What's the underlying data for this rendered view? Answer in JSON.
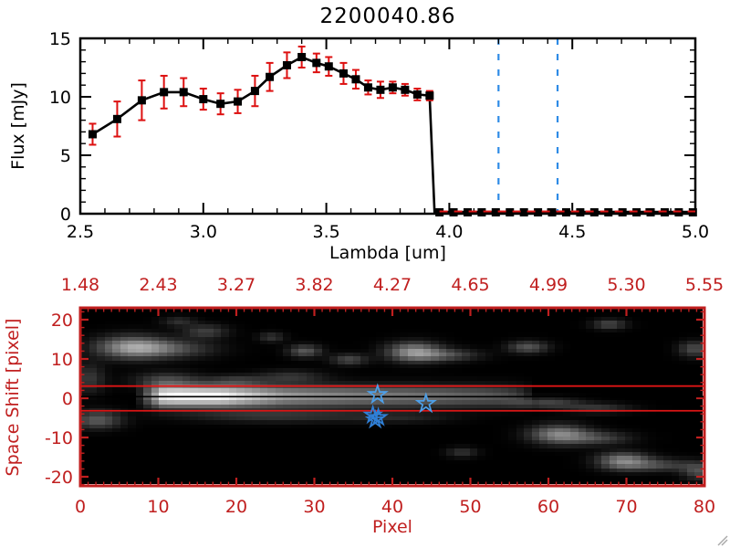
{
  "title": "2200040.86",
  "colors": {
    "background": "#ffffff",
    "spectrum_axis": "#000000",
    "spectrum_line": "#000000",
    "error_bar_red": "#dd1010",
    "zero_dashed_red": "#dd1515",
    "band_line_blue": "#2e8be6",
    "image_axis_red": "#c01f1f",
    "aperture_line_red": "#dd1515",
    "trace_line_black": "#000000",
    "star_blue": "#4da0ea",
    "star_cluster_blue": "#2f7fd6",
    "resize_grip_gray": "#aaaaaa"
  },
  "chart_data": [
    {
      "id": "spectrum",
      "type": "line",
      "title": "2200040.86",
      "xlabel": "Lambda [um]",
      "ylabel": "Flux [mJy]",
      "xlim": [
        2.5,
        5.0
      ],
      "ylim": [
        0,
        15
      ],
      "x_ticks": [
        "2.5",
        "3.0",
        "3.5",
        "4.0",
        "4.5",
        "5.0"
      ],
      "y_ticks": [
        "0",
        "5",
        "10",
        "15"
      ],
      "x_minor_step": 0.1,
      "y_minor_step": 1,
      "marker": "filled-square",
      "legend": "none",
      "grid": false,
      "points_columns": [
        "lambda_um",
        "flux_mJy",
        "flux_err_mJy"
      ],
      "points": [
        [
          2.55,
          6.8,
          0.9
        ],
        [
          2.65,
          8.1,
          1.5
        ],
        [
          2.75,
          9.7,
          1.7
        ],
        [
          2.84,
          10.4,
          1.4
        ],
        [
          2.92,
          10.4,
          1.2
        ],
        [
          3.0,
          9.8,
          0.9
        ],
        [
          3.07,
          9.4,
          0.9
        ],
        [
          3.14,
          9.6,
          1.0
        ],
        [
          3.21,
          10.5,
          1.3
        ],
        [
          3.27,
          11.7,
          1.2
        ],
        [
          3.34,
          12.7,
          1.1
        ],
        [
          3.4,
          13.4,
          0.9
        ],
        [
          3.46,
          12.9,
          0.8
        ],
        [
          3.51,
          12.6,
          0.8
        ],
        [
          3.57,
          12.0,
          0.9
        ],
        [
          3.62,
          11.5,
          0.8
        ],
        [
          3.67,
          10.8,
          0.6
        ],
        [
          3.72,
          10.6,
          0.7
        ],
        [
          3.77,
          10.8,
          0.5
        ],
        [
          3.82,
          10.6,
          0.5
        ],
        [
          3.87,
          10.2,
          0.5
        ],
        [
          3.92,
          10.1,
          0.4
        ]
      ],
      "drop_to_zero_at_x": 3.94,
      "zero_tail": {
        "from": 3.96,
        "to": 4.99,
        "count": 19,
        "flux": 0
      },
      "vlines_dashed_blue": [
        4.2,
        4.44
      ],
      "hline_dashed_red": {
        "y": 0,
        "from_x": 3.96,
        "to_x": 5.0
      }
    },
    {
      "id": "spatial_image",
      "type": "heatmap",
      "xlabel": "Pixel",
      "ylabel": "Space Shift [pixel]",
      "top_axis_tick_labels": [
        "1.48",
        "2.43",
        "3.27",
        "3.82",
        "4.27",
        "4.65",
        "4.99",
        "5.30",
        "5.55"
      ],
      "x_ticks": [
        "0",
        "10",
        "20",
        "30",
        "40",
        "50",
        "60",
        "70",
        "80"
      ],
      "y_ticks": [
        "20",
        "10",
        "0",
        "-10",
        "-20"
      ],
      "xlim": [
        0,
        80
      ],
      "ylim": [
        -22,
        23
      ],
      "colormap": "grayscale",
      "aperture_lines_y": [
        3.1,
        -3.2
      ],
      "trace_center_line_y": 0.4,
      "trace_profile": {
        "center_y": 0.5,
        "sigma_y": 1.9,
        "amplitude_by_x": [
          [
            7,
            0
          ],
          [
            9,
            0.5
          ],
          [
            10.5,
            0.95
          ],
          [
            12,
            1.0
          ],
          [
            18,
            1.0
          ],
          [
            22,
            0.8
          ],
          [
            26,
            0.62
          ],
          [
            31,
            0.55
          ],
          [
            36,
            0.5
          ],
          [
            42,
            0.46
          ],
          [
            47,
            0.42
          ],
          [
            52,
            0.36
          ],
          [
            55,
            0.3
          ],
          [
            57,
            0.18
          ],
          [
            58.5,
            0
          ]
        ]
      },
      "blobs_columns": [
        "x_pixel",
        "space_shift",
        "sigma_x",
        "sigma_y",
        "intensity"
      ],
      "blobs": [
        [
          6.5,
          13,
          3.2,
          2.0,
          0.55
        ],
        [
          11.5,
          12.5,
          4,
          1.6,
          0.28
        ],
        [
          2,
          -5.5,
          2.2,
          1.6,
          0.35
        ],
        [
          1,
          5,
          1.4,
          2.6,
          0.22
        ],
        [
          16,
          17,
          2,
          1.2,
          0.25
        ],
        [
          12.5,
          19.5,
          1.5,
          0.9,
          0.18
        ],
        [
          24.5,
          15.5,
          1.2,
          0.9,
          0.2
        ],
        [
          28.8,
          12,
          1.5,
          1.1,
          0.35
        ],
        [
          34.5,
          9.8,
          1.6,
          1.0,
          0.28
        ],
        [
          27,
          5.5,
          3,
          1.1,
          0.2
        ],
        [
          20,
          4.5,
          2.5,
          1.0,
          0.18
        ],
        [
          11,
          4.5,
          3,
          1.5,
          0.25
        ],
        [
          42.8,
          11.8,
          2.4,
          1.7,
          0.55
        ],
        [
          47,
          11,
          3,
          1.1,
          0.28
        ],
        [
          57.5,
          13,
          1.8,
          1.1,
          0.33
        ],
        [
          68,
          18.8,
          1.5,
          0.9,
          0.28
        ],
        [
          61.5,
          -9.2,
          2.6,
          1.7,
          0.5
        ],
        [
          66.5,
          -10.2,
          3,
          1.2,
          0.26
        ],
        [
          69.8,
          -16,
          2.3,
          1.5,
          0.5
        ],
        [
          74.5,
          -17,
          3,
          1.1,
          0.26
        ],
        [
          79,
          12.5,
          1.4,
          1.4,
          0.3
        ],
        [
          60,
          -1.2,
          3,
          1.0,
          0.26
        ],
        [
          66.5,
          -2.6,
          3,
          0.9,
          0.22
        ],
        [
          25,
          -4.6,
          8,
          1.1,
          0.2
        ],
        [
          41,
          -5,
          5,
          0.9,
          0.13
        ],
        [
          49,
          -13.8,
          1.4,
          0.9,
          0.2
        ],
        [
          79.5,
          -18.5,
          1.5,
          1.5,
          0.3
        ]
      ],
      "star_markers": [
        {
          "x": 38.1,
          "y": 0.9
        },
        {
          "x": 44.3,
          "y": -1.4
        }
      ],
      "star_cluster_markers": [
        {
          "x": 37.5,
          "y": -4.3
        },
        {
          "x": 38.2,
          "y": -4.9
        },
        {
          "x": 37.8,
          "y": -5.5
        }
      ]
    }
  ]
}
